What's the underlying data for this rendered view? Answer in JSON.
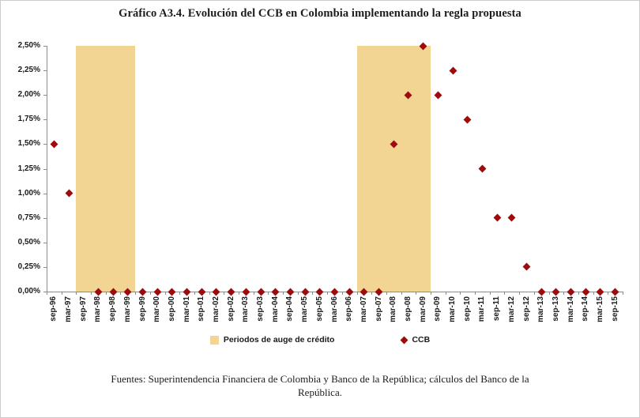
{
  "title": "Gráfico A3.4. Evolución del CCB en Colombia implementando la regla propuesta",
  "legend": [
    {
      "type": "band",
      "label": "Periodos de auge de crédito"
    },
    {
      "type": "point",
      "label": "CCB"
    }
  ],
  "footer": {
    "lines": [
      "Fuentes: Superintendencia Financiera de Colombia y Banco de la República; cálculos del Banco de la",
      "República."
    ]
  },
  "colors": {
    "point": "#9E0B0F",
    "band": "#F2D592",
    "axis_line": "#8c8c8c",
    "text": "#1a1a1a"
  },
  "chart_data": {
    "type": "scatter",
    "title": "Gráfico A3.4. Evolución del CCB en Colombia implementando la regla propuesta",
    "xlabel": "",
    "ylabel": "",
    "ylim": [
      0,
      2.5
    ],
    "y_tick_step": 0.25,
    "y_ticks": [
      "2,50%",
      "2,25%",
      "2,00%",
      "1,75%",
      "1,50%",
      "1,25%",
      "1,00%",
      "0,75%",
      "0,50%",
      "0,25%",
      "0,00%"
    ],
    "grid": false,
    "legend_position": "bottom",
    "x_categories": [
      "sep-96",
      "mar-97",
      "sep-97",
      "mar-98",
      "sep-98",
      "mar-99",
      "sep-99",
      "mar-00",
      "sep-00",
      "mar-01",
      "sep-01",
      "mar-02",
      "sep-02",
      "mar-03",
      "sep-03",
      "mar-04",
      "sep-04",
      "mar-05",
      "sep-05",
      "mar-06",
      "sep-06",
      "mar-07",
      "sep-07",
      "mar-08",
      "sep-08",
      "mar-09",
      "sep-09",
      "mar-10",
      "sep-10",
      "mar-11",
      "sep-11",
      "mar-12",
      "sep-12",
      "mar-13",
      "sep-13",
      "mar-14",
      "sep-14",
      "mar-15",
      "sep-15"
    ],
    "series": [
      {
        "name": "CCB",
        "values": [
          1.5,
          1.0,
          null,
          0.0,
          0.0,
          0.0,
          0.0,
          0.0,
          0.0,
          0.0,
          0.0,
          0.0,
          0.0,
          0.0,
          0.0,
          0.0,
          0.0,
          0.0,
          0.0,
          0.0,
          0.0,
          0.0,
          0.0,
          1.5,
          2.0,
          2.5,
          2.0,
          2.25,
          1.75,
          1.25,
          0.75,
          0.75,
          0.25,
          0.0,
          0.0,
          0.0,
          0.0,
          0.0,
          0.0
        ]
      }
    ],
    "bands": [
      {
        "label": "Periodos de auge de crédito",
        "from": "sep-97",
        "to": "mar-99"
      },
      {
        "label": "Periodos de auge de crédito",
        "from": "mar-07",
        "to": "mar-09"
      }
    ]
  }
}
